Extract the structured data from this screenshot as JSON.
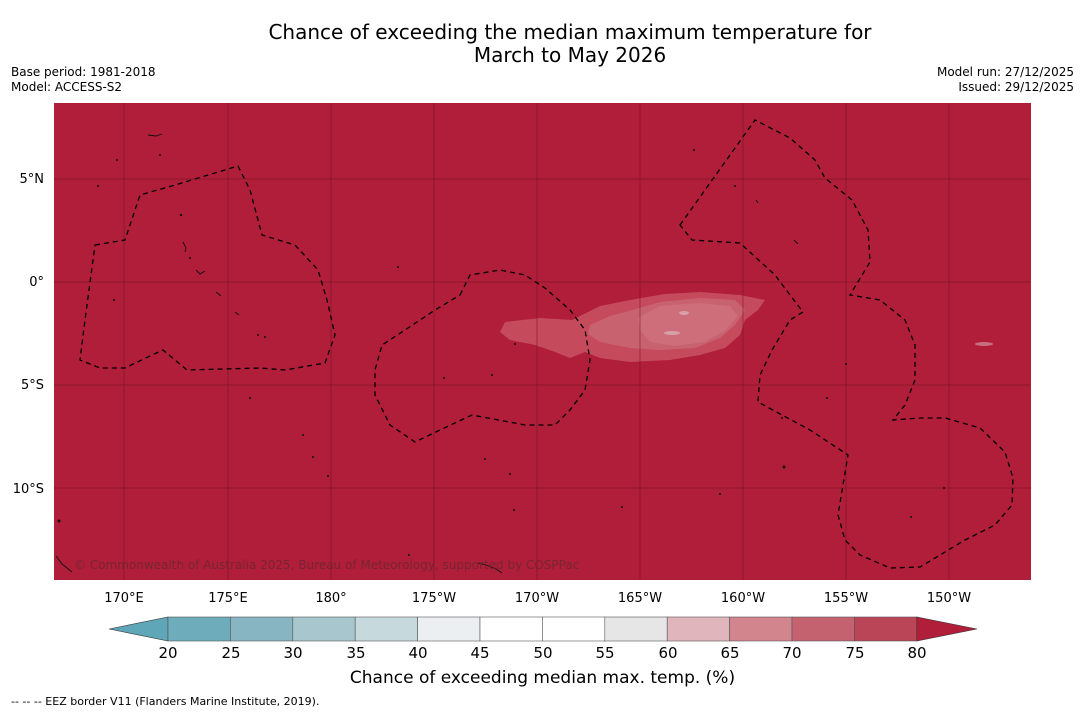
{
  "title_line1": "Chance of exceeding the median maximum temperature for",
  "title_line2": "March to May 2026",
  "base_period": "Base period: 1981-2018",
  "model": "Model: ACCESS-S2",
  "model_run": "Model run: 27/12/2025",
  "issued": "Issued: 29/12/2025",
  "map": {
    "background_color": "#b01e39",
    "lat_labels": [
      "5°N",
      "0°",
      "5°S",
      "10°S"
    ],
    "lon_labels": [
      "170°E",
      "175°E",
      "180°",
      "175°W",
      "170°W",
      "165°W",
      "160°W",
      "155°W",
      "150°W"
    ],
    "credit": "© Commonwealth of Australia 2025, Bureau of Meteorology, supported by COSPPac"
  },
  "colorbar": {
    "ticks": [
      "20",
      "25",
      "30",
      "35",
      "40",
      "45",
      "50",
      "55",
      "60",
      "65",
      "70",
      "75",
      "80"
    ],
    "colors": [
      "#5ea6b8",
      "#6eacbb",
      "#87b5c2",
      "#a7c6cd",
      "#c6d9dd",
      "#eceff2",
      "#ffffff",
      "#ffffff",
      "#e6e6e6",
      "#e0b6bc",
      "#d3858e",
      "#c56270",
      "#b94556",
      "#b01e39"
    ],
    "title": "Chance of exceeding median max. temp. (%)"
  },
  "footer": "--  --  -- EEZ border V11 (Flanders Marine Institute, 2019)."
}
